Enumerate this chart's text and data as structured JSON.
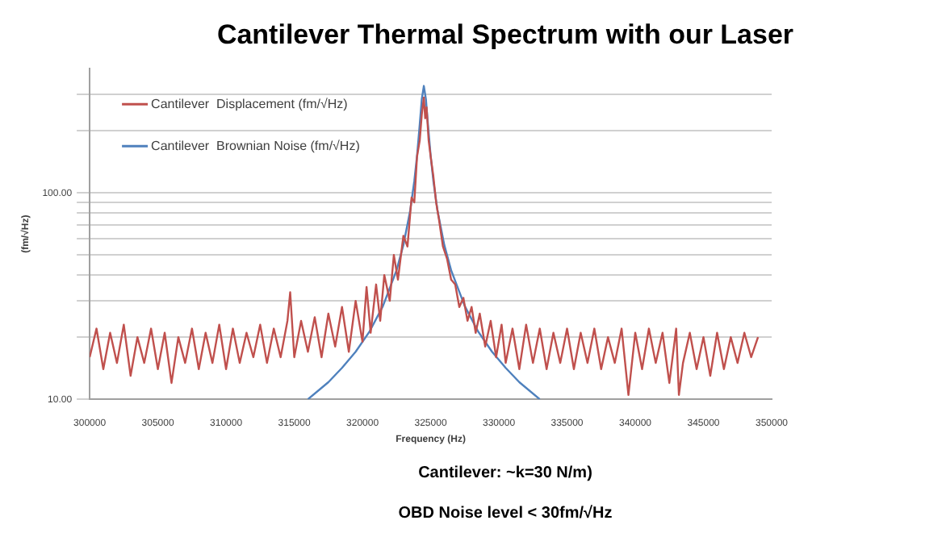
{
  "chart_data": {
    "type": "line",
    "title": "Cantilever Thermal Spectrum with our Laser",
    "xlabel": "Frequency (Hz)",
    "ylabel": "(fm/√Hz)",
    "annotations": [
      "Cantilever: ~k=30 N/m)",
      "OBD Noise level < 30fm/√Hz"
    ],
    "log": "y",
    "grid": "y",
    "legend": "top left",
    "marker": "none",
    "line_style": "solid",
    "xlim": [
      300000,
      350000
    ],
    "xticks": [
      300000,
      305000,
      310000,
      315000,
      320000,
      325000,
      330000,
      335000,
      340000,
      345000,
      350000
    ],
    "ylim": [
      10,
      400
    ],
    "yticks": [
      {
        "value": 10,
        "label": "10.00"
      },
      {
        "value": 20,
        "label": null
      },
      {
        "value": 30,
        "label": null
      },
      {
        "value": 40,
        "label": null
      },
      {
        "value": 50,
        "label": null
      },
      {
        "value": 60,
        "label": null
      },
      {
        "value": 70,
        "label": null
      },
      {
        "value": 80,
        "label": null
      },
      {
        "value": 90,
        "label": null
      },
      {
        "value": 100,
        "label": "100.00"
      },
      {
        "value": 200,
        "label": null
      },
      {
        "value": 300,
        "label": null
      }
    ],
    "series": [
      {
        "name": "Cantilever  Displacement (fm/√Hz)",
        "color": "#c0504d",
        "x": [
          300000,
          300500,
          301000,
          301500,
          302000,
          302500,
          303000,
          303500,
          304000,
          304500,
          305000,
          305500,
          306000,
          306500,
          307000,
          307500,
          308000,
          308500,
          309000,
          309500,
          310000,
          310500,
          311000,
          311500,
          312000,
          312500,
          313000,
          313500,
          314000,
          314500,
          314700,
          315000,
          315500,
          316000,
          316500,
          317000,
          317500,
          318000,
          318500,
          319000,
          319500,
          320000,
          320300,
          320600,
          321000,
          321300,
          321600,
          322000,
          322300,
          322600,
          323000,
          323300,
          323600,
          323800,
          324000,
          324200,
          324350,
          324500,
          324600,
          324700,
          324850,
          325000,
          325200,
          325400,
          325600,
          325900,
          326200,
          326500,
          326800,
          327100,
          327400,
          327700,
          328000,
          328300,
          328600,
          329000,
          329400,
          329800,
          330200,
          330500,
          331000,
          331500,
          332000,
          332500,
          333000,
          333500,
          334000,
          334500,
          335000,
          335500,
          336000,
          336500,
          337000,
          337500,
          338000,
          338500,
          339000,
          339500,
          340000,
          340500,
          341000,
          341500,
          342000,
          342500,
          343000,
          343200,
          343500,
          344000,
          344500,
          345000,
          345500,
          346000,
          346500,
          347000,
          347500,
          348000,
          348500,
          349000
        ],
        "values": [
          16,
          22,
          14,
          21,
          15,
          23,
          13,
          20,
          15,
          22,
          14,
          21,
          12,
          20,
          15,
          22,
          14,
          21,
          15,
          23,
          14,
          22,
          15,
          21,
          16,
          23,
          15,
          22,
          16,
          24,
          33,
          16,
          24,
          17,
          25,
          16,
          26,
          18,
          28,
          17,
          30,
          19,
          35,
          21,
          36,
          24,
          40,
          30,
          50,
          38,
          62,
          55,
          95,
          90,
          150,
          180,
          240,
          290,
          230,
          260,
          180,
          150,
          120,
          90,
          75,
          55,
          48,
          38,
          36,
          28,
          31,
          24,
          28,
          21,
          26,
          18,
          24,
          16,
          23,
          15,
          22,
          14,
          23,
          15,
          22,
          14,
          21,
          15,
          22,
          14,
          21,
          15,
          22,
          14,
          20,
          15,
          22,
          10.5,
          21,
          14,
          22,
          15,
          21,
          12,
          22,
          10.5,
          15,
          21,
          14,
          20,
          13,
          21,
          14,
          20,
          15,
          21,
          16,
          20
        ]
      },
      {
        "name": "Cantilever  Brownian Noise (fm/√Hz)",
        "color": "#4f81bd",
        "x": [
          316000,
          317500,
          318500,
          319500,
          320500,
          321500,
          322500,
          323000,
          323500,
          323800,
          324000,
          324200,
          324350,
          324500,
          324650,
          324800,
          325000,
          325200,
          325500,
          326000,
          326500,
          327500,
          328500,
          329500,
          330500,
          331500,
          333000
        ],
        "values": [
          10,
          12.1,
          14.2,
          17,
          21.2,
          28.3,
          42.2,
          55.9,
          82.3,
          114,
          151,
          215,
          285,
          330,
          285,
          215,
          151,
          114,
          82.3,
          55.9,
          42.2,
          28.3,
          21.2,
          17,
          14.2,
          12.1,
          10
        ]
      }
    ]
  }
}
